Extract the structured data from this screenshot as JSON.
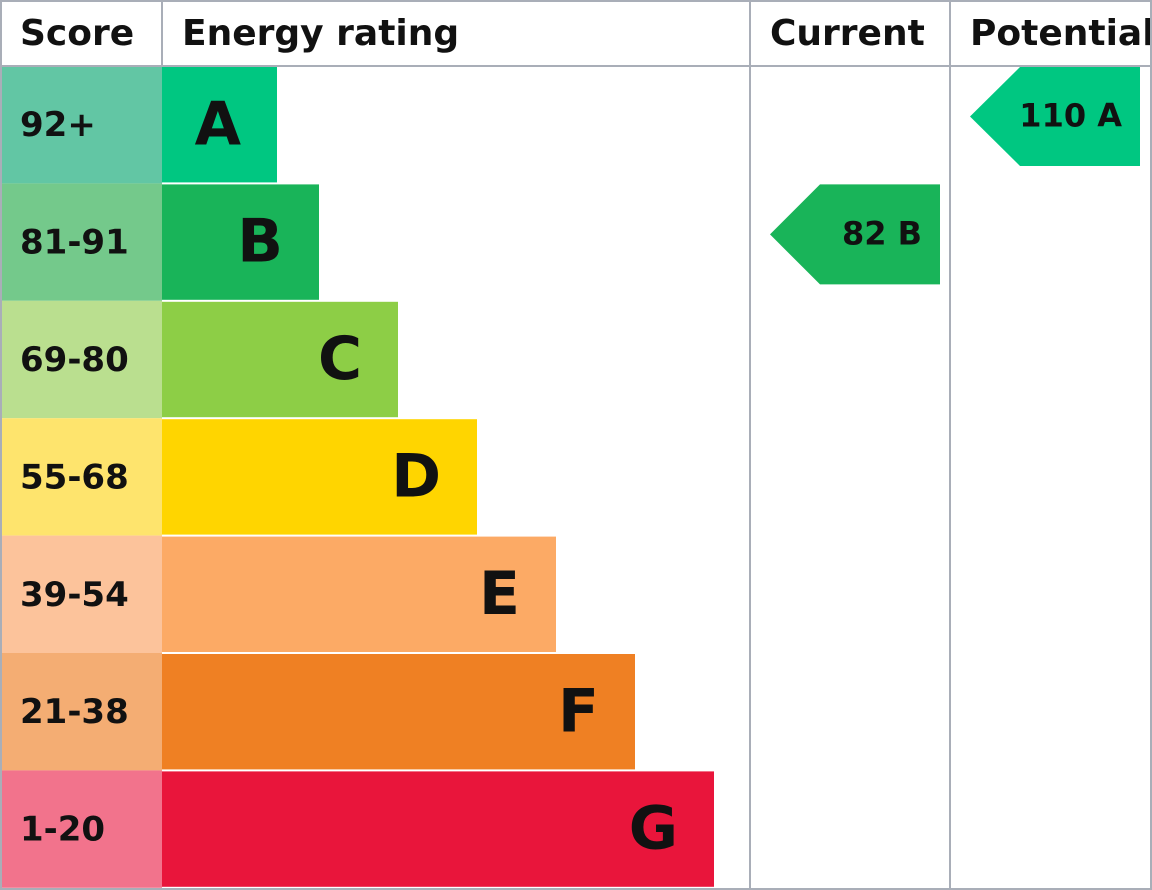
{
  "headers": [
    "Score",
    "Energy rating",
    "Current",
    "Potential"
  ],
  "bands": [
    {
      "score": "92+",
      "rating": "A",
      "score_color": "#62c6a4",
      "color": "#00c781"
    },
    {
      "score": "81-91",
      "rating": "B",
      "score_color": "#74c98b",
      "color": "#19b459"
    },
    {
      "score": "69-80",
      "rating": "C",
      "score_color": "#badf8f",
      "color": "#8dce46"
    },
    {
      "score": "55-68",
      "rating": "D",
      "score_color": "#fee46d",
      "color": "#ffd500"
    },
    {
      "score": "39-54",
      "rating": "E",
      "score_color": "#fcc39b",
      "color": "#fcaa65"
    },
    {
      "score": "21-38",
      "rating": "F",
      "score_color": "#f4ad73",
      "color": "#ef8023"
    },
    {
      "score": "1-20",
      "rating": "G",
      "score_color": "#f2738c",
      "color": "#e9153b"
    }
  ],
  "current": {
    "label": "82 B",
    "color": "#19b459"
  },
  "potential": {
    "label": "110 A",
    "color": "#00c781"
  }
}
